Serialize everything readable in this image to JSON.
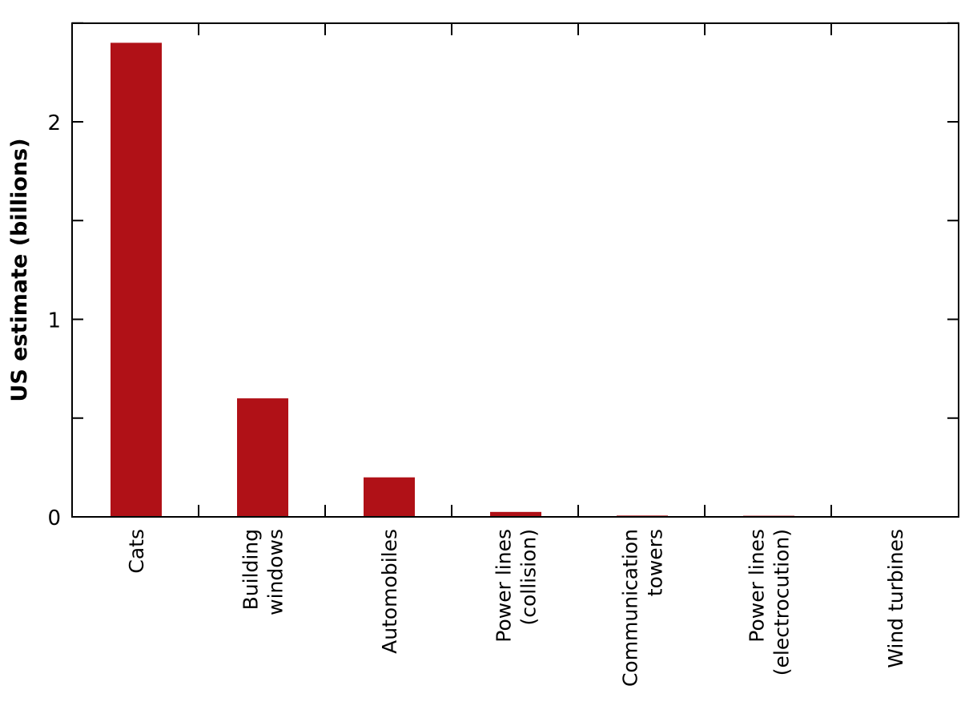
{
  "chart_data": {
    "type": "bar",
    "title": "",
    "xlabel": "",
    "ylabel": "US estimate (billions)",
    "ylim": [
      0,
      2.5
    ],
    "yticks": [
      0,
      1,
      2
    ],
    "yticks_minor": [
      0.5,
      1.5,
      2.5
    ],
    "grid": false,
    "legend": null,
    "bar_color": "#b01117",
    "categories": [
      "Cats",
      "Building windows",
      "Automobiles",
      "Power lines (collision)",
      "Communication towers",
      "Power lines (electrocution)",
      "Wind turbines"
    ],
    "category_label_lines": [
      [
        "Cats"
      ],
      [
        "Building",
        "windows"
      ],
      [
        "Automobiles"
      ],
      [
        "Power lines",
        "(collision)"
      ],
      [
        "Communication",
        "towers"
      ],
      [
        "Power lines",
        "(electrocution)"
      ],
      [
        "Wind turbines"
      ]
    ],
    "values": [
      2.4,
      0.6,
      0.2,
      0.025,
      0.0066,
      0.0056,
      0.0002
    ]
  }
}
